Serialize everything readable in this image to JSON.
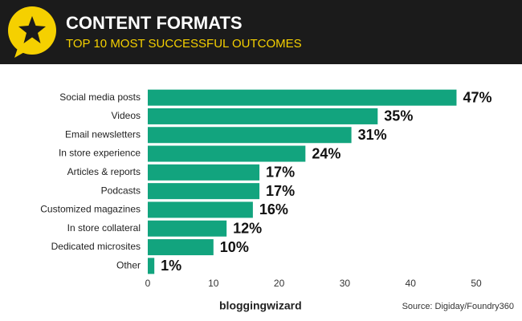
{
  "chart_data": {
    "type": "bar",
    "orientation": "horizontal",
    "title": "CONTENT FORMATS",
    "subtitle": "TOP 10 MOST SUCCESSFUL OUTCOMES",
    "categories": [
      "Social media posts",
      "Videos",
      "Email newsletters",
      "In store experience",
      "Articles & reports",
      "Podcasts",
      "Customized magazines",
      "In store collateral",
      "Dedicated microsites",
      "Other"
    ],
    "values": [
      47,
      35,
      31,
      24,
      17,
      17,
      16,
      12,
      10,
      1
    ],
    "value_labels": [
      "47%",
      "35%",
      "31%",
      "24%",
      "17%",
      "17%",
      "16%",
      "12%",
      "10%",
      "1%"
    ],
    "color": "#12a47e",
    "xlim": [
      0,
      50
    ],
    "xticks": [
      0,
      10,
      20,
      30,
      40,
      50
    ],
    "grid": false,
    "brand": "bloggingwizard",
    "source": "Source: Digiday/Foundry360"
  }
}
